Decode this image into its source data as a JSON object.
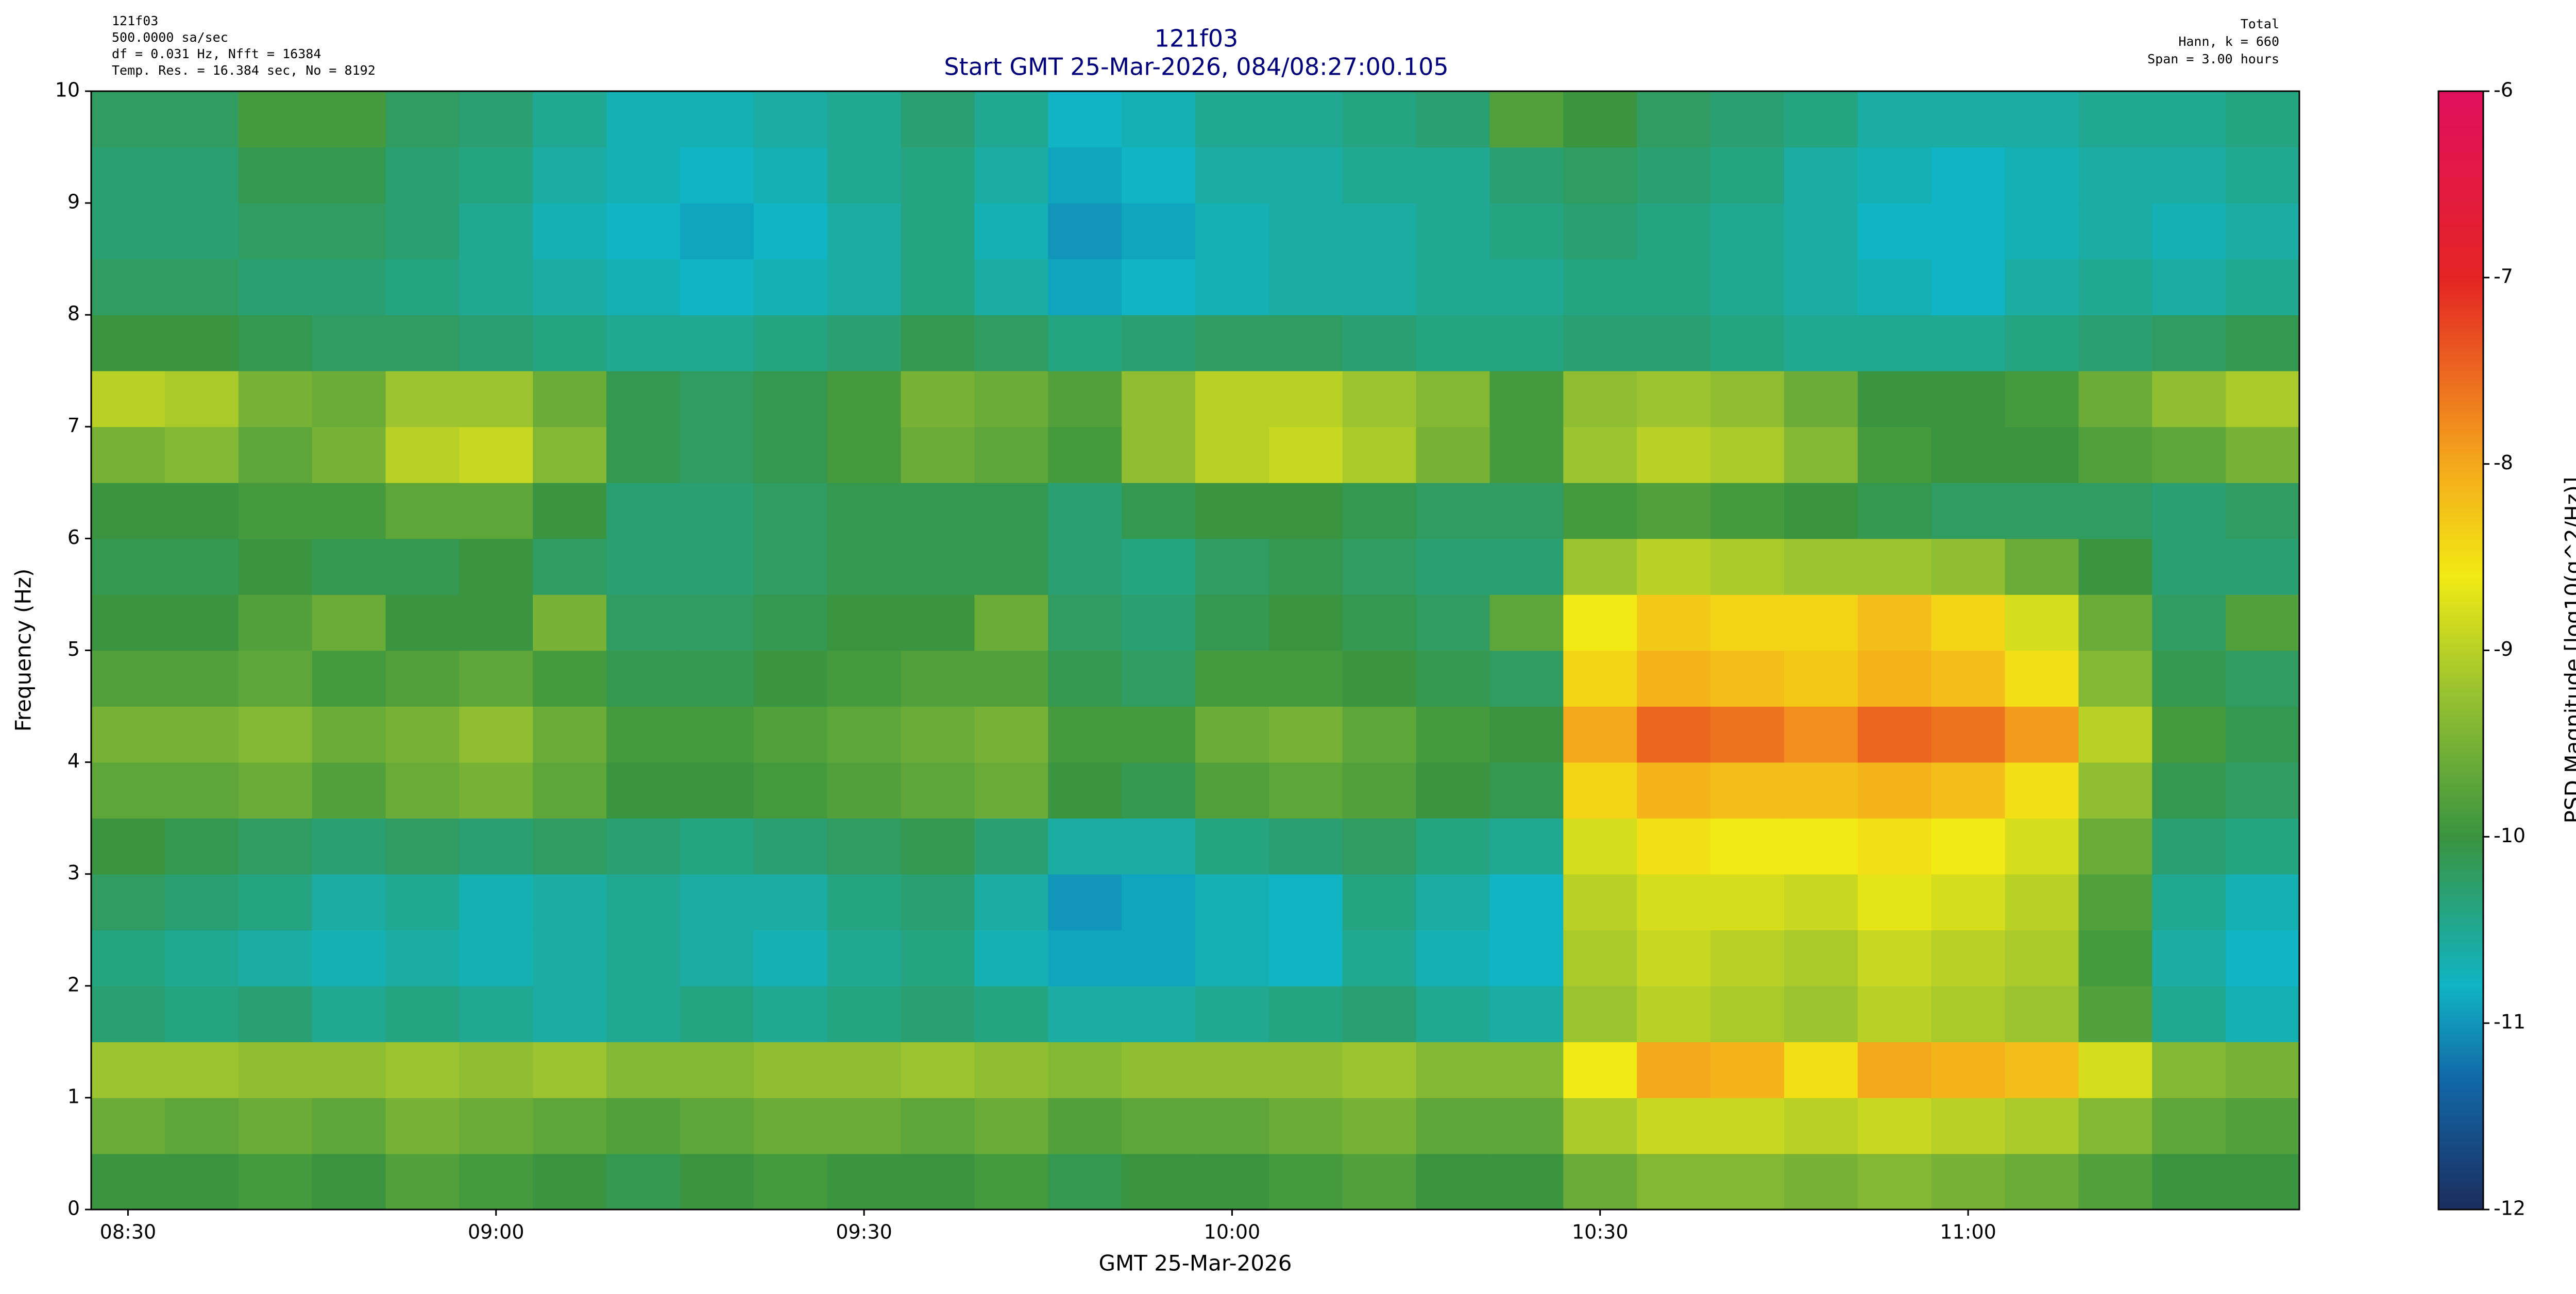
{
  "chart_data": {
    "type": "heatmap",
    "title": "121f03",
    "subtitle": "Start GMT 25-Mar-2026, 084/08:27:00.105",
    "info_left": [
      "121f03",
      "500.0000 sa/sec",
      "df = 0.031 Hz,  Nfft = 16384",
      "Temp. Res. = 16.384 sec, No = 8192"
    ],
    "info_right": [
      "Total",
      "Hann, k = 660",
      "Span = 3.00 hours"
    ],
    "x_label": "GMT 25-Mar-2026",
    "y_label": "Frequency (Hz)",
    "xlim": [
      "08:27",
      "11:27"
    ],
    "xticks": [
      "08:30",
      "09:00",
      "09:30",
      "10:00",
      "10:30",
      "11:00"
    ],
    "ylim": [
      0,
      10
    ],
    "yticks": [
      0,
      1,
      2,
      3,
      4,
      5,
      6,
      7,
      8,
      9,
      10
    ],
    "bins": [
      "08:27",
      "08:33",
      "08:39",
      "08:45",
      "08:51",
      "08:57",
      "09:03",
      "09:09",
      "09:15",
      "09:21",
      "09:27",
      "09:33",
      "09:39",
      "09:45",
      "09:51",
      "09:57",
      "10:03",
      "10:09",
      "10:15",
      "10:21",
      "10:27",
      "10:33",
      "10:39",
      "10:45",
      "10:51",
      "10:57",
      "11:03",
      "11:09",
      "11:15",
      "11:21",
      "11:27"
    ],
    "ybins": [
      0,
      0.5,
      1,
      1.5,
      2,
      2.5,
      3,
      3.5,
      4,
      4.5,
      5,
      5.5,
      6,
      6.5,
      7,
      7.5,
      8,
      8.5,
      9,
      9.5,
      10
    ],
    "values": [
      [
        -10.0,
        -10.0,
        -9.9,
        -10.0,
        -9.8,
        -9.9,
        -10.0,
        -10.1,
        -10.0,
        -9.9,
        -10.0,
        -10.0,
        -9.9,
        -10.1,
        -10.0,
        -10.0,
        -9.9,
        -9.8,
        -10.0,
        -10.0,
        -9.6,
        -9.4,
        -9.4,
        -9.5,
        -9.4,
        -9.5,
        -9.6,
        -9.8,
        -10.0,
        -10.0
      ],
      [
        -9.6,
        -9.7,
        -9.6,
        -9.7,
        -9.5,
        -9.6,
        -9.7,
        -9.8,
        -9.7,
        -9.6,
        -9.6,
        -9.7,
        -9.6,
        -9.8,
        -9.7,
        -9.7,
        -9.6,
        -9.5,
        -9.7,
        -9.7,
        -9.1,
        -8.9,
        -8.9,
        -9.0,
        -8.9,
        -9.0,
        -9.1,
        -9.4,
        -9.7,
        -9.8
      ],
      [
        -9.2,
        -9.2,
        -9.3,
        -9.3,
        -9.2,
        -9.3,
        -9.2,
        -9.4,
        -9.4,
        -9.3,
        -9.3,
        -9.2,
        -9.3,
        -9.4,
        -9.3,
        -9.3,
        -9.3,
        -9.2,
        -9.4,
        -9.4,
        -8.6,
        -8.0,
        -8.1,
        -8.5,
        -8.0,
        -8.1,
        -8.2,
        -8.8,
        -9.4,
        -9.5
      ],
      [
        -10.3,
        -10.4,
        -10.3,
        -10.5,
        -10.4,
        -10.5,
        -10.6,
        -10.5,
        -10.4,
        -10.5,
        -10.4,
        -10.3,
        -10.4,
        -10.6,
        -10.6,
        -10.5,
        -10.4,
        -10.3,
        -10.5,
        -10.6,
        -9.2,
        -9.0,
        -9.1,
        -9.2,
        -9.0,
        -9.1,
        -9.2,
        -9.8,
        -10.5,
        -10.7
      ],
      [
        -10.4,
        -10.5,
        -10.6,
        -10.7,
        -10.6,
        -10.7,
        -10.6,
        -10.5,
        -10.6,
        -10.7,
        -10.5,
        -10.4,
        -10.7,
        -10.9,
        -10.9,
        -10.7,
        -10.8,
        -10.5,
        -10.7,
        -10.8,
        -9.1,
        -8.9,
        -9.0,
        -9.1,
        -8.9,
        -9.0,
        -9.1,
        -9.9,
        -10.6,
        -10.8
      ],
      [
        -10.2,
        -10.3,
        -10.4,
        -10.6,
        -10.5,
        -10.7,
        -10.6,
        -10.5,
        -10.6,
        -10.6,
        -10.4,
        -10.3,
        -10.6,
        -11.0,
        -10.9,
        -10.7,
        -10.8,
        -10.4,
        -10.6,
        -10.8,
        -9.0,
        -8.8,
        -8.8,
        -8.9,
        -8.7,
        -8.8,
        -9.0,
        -9.8,
        -10.5,
        -10.7
      ],
      [
        -10.0,
        -10.1,
        -10.2,
        -10.3,
        -10.2,
        -10.3,
        -10.2,
        -10.3,
        -10.4,
        -10.3,
        -10.2,
        -10.1,
        -10.3,
        -10.6,
        -10.6,
        -10.4,
        -10.3,
        -10.2,
        -10.4,
        -10.5,
        -8.8,
        -8.5,
        -8.6,
        -8.6,
        -8.5,
        -8.6,
        -8.8,
        -9.6,
        -10.3,
        -10.4
      ],
      [
        -9.7,
        -9.7,
        -9.6,
        -9.8,
        -9.6,
        -9.5,
        -9.7,
        -10.0,
        -10.0,
        -9.9,
        -9.8,
        -9.7,
        -9.6,
        -10.0,
        -10.1,
        -9.8,
        -9.7,
        -9.8,
        -10.0,
        -10.1,
        -8.4,
        -8.1,
        -8.2,
        -8.2,
        -8.1,
        -8.2,
        -8.5,
        -9.3,
        -10.1,
        -10.2
      ],
      [
        -9.5,
        -9.5,
        -9.4,
        -9.6,
        -9.5,
        -9.3,
        -9.6,
        -9.9,
        -9.9,
        -9.8,
        -9.7,
        -9.6,
        -9.5,
        -9.9,
        -9.9,
        -9.6,
        -9.5,
        -9.7,
        -9.9,
        -10.0,
        -8.0,
        -7.5,
        -7.6,
        -7.8,
        -7.5,
        -7.6,
        -7.9,
        -9.0,
        -9.9,
        -10.1
      ],
      [
        -9.8,
        -9.8,
        -9.7,
        -9.9,
        -9.8,
        -9.7,
        -9.9,
        -10.1,
        -10.1,
        -10.0,
        -9.9,
        -9.8,
        -9.8,
        -10.1,
        -10.2,
        -9.9,
        -9.9,
        -10.0,
        -10.1,
        -10.2,
        -8.4,
        -8.1,
        -8.2,
        -8.3,
        -8.1,
        -8.2,
        -8.5,
        -9.4,
        -10.1,
        -10.2
      ],
      [
        -10.0,
        -10.0,
        -9.8,
        -9.6,
        -10.0,
        -10.0,
        -9.5,
        -10.2,
        -10.2,
        -10.1,
        -10.0,
        -10.0,
        -9.6,
        -10.2,
        -10.3,
        -10.1,
        -10.0,
        -10.1,
        -10.2,
        -9.7,
        -8.6,
        -8.3,
        -8.4,
        -8.4,
        -8.2,
        -8.4,
        -8.8,
        -9.6,
        -10.2,
        -9.8
      ],
      [
        -10.1,
        -10.1,
        -10.0,
        -10.1,
        -10.1,
        -10.0,
        -10.2,
        -10.3,
        -10.3,
        -10.2,
        -10.1,
        -10.1,
        -10.1,
        -10.3,
        -10.4,
        -10.2,
        -10.1,
        -10.2,
        -10.3,
        -10.3,
        -9.2,
        -9.0,
        -9.1,
        -9.2,
        -9.2,
        -9.3,
        -9.6,
        -10.0,
        -10.3,
        -10.3
      ],
      [
        -10.0,
        -10.0,
        -9.9,
        -9.9,
        -9.7,
        -9.7,
        -10.0,
        -10.3,
        -10.3,
        -10.2,
        -10.1,
        -10.1,
        -10.1,
        -10.3,
        -10.1,
        -10.0,
        -10.0,
        -10.1,
        -10.2,
        -10.2,
        -9.9,
        -9.8,
        -9.9,
        -10.0,
        -10.1,
        -10.2,
        -10.2,
        -10.2,
        -10.3,
        -10.2
      ],
      [
        -9.5,
        -9.4,
        -9.7,
        -9.5,
        -9.0,
        -8.9,
        -9.4,
        -10.1,
        -10.2,
        -10.1,
        -9.9,
        -9.6,
        -9.7,
        -9.9,
        -9.3,
        -9.0,
        -8.9,
        -9.1,
        -9.5,
        -9.9,
        -9.2,
        -9.0,
        -9.1,
        -9.4,
        -9.9,
        -10.0,
        -10.0,
        -9.8,
        -9.7,
        -9.5
      ],
      [
        -9.0,
        -9.1,
        -9.5,
        -9.6,
        -9.2,
        -9.2,
        -9.6,
        -10.1,
        -10.2,
        -10.1,
        -9.9,
        -9.5,
        -9.6,
        -9.8,
        -9.3,
        -9.0,
        -9.0,
        -9.2,
        -9.4,
        -9.9,
        -9.3,
        -9.2,
        -9.3,
        -9.6,
        -10.0,
        -10.0,
        -9.9,
        -9.6,
        -9.3,
        -9.1
      ],
      [
        -10.0,
        -10.0,
        -10.1,
        -10.2,
        -10.2,
        -10.3,
        -10.4,
        -10.5,
        -10.5,
        -10.4,
        -10.3,
        -10.1,
        -10.2,
        -10.4,
        -10.3,
        -10.2,
        -10.2,
        -10.3,
        -10.4,
        -10.4,
        -10.3,
        -10.3,
        -10.4,
        -10.5,
        -10.5,
        -10.5,
        -10.4,
        -10.3,
        -10.2,
        -10.1
      ],
      [
        -10.2,
        -10.2,
        -10.3,
        -10.3,
        -10.4,
        -10.5,
        -10.6,
        -10.7,
        -10.8,
        -10.7,
        -10.6,
        -10.4,
        -10.6,
        -10.9,
        -10.8,
        -10.7,
        -10.6,
        -10.6,
        -10.5,
        -10.5,
        -10.4,
        -10.4,
        -10.5,
        -10.6,
        -10.7,
        -10.8,
        -10.6,
        -10.5,
        -10.6,
        -10.5
      ],
      [
        -10.3,
        -10.3,
        -10.2,
        -10.2,
        -10.3,
        -10.5,
        -10.7,
        -10.8,
        -10.9,
        -10.8,
        -10.6,
        -10.4,
        -10.7,
        -11.0,
        -10.9,
        -10.7,
        -10.6,
        -10.6,
        -10.5,
        -10.4,
        -10.3,
        -10.4,
        -10.5,
        -10.6,
        -10.8,
        -10.8,
        -10.7,
        -10.6,
        -10.7,
        -10.6
      ],
      [
        -10.3,
        -10.3,
        -10.1,
        -10.1,
        -10.3,
        -10.4,
        -10.6,
        -10.7,
        -10.8,
        -10.7,
        -10.5,
        -10.4,
        -10.6,
        -10.9,
        -10.8,
        -10.6,
        -10.6,
        -10.5,
        -10.5,
        -10.3,
        -10.2,
        -10.3,
        -10.4,
        -10.6,
        -10.7,
        -10.8,
        -10.7,
        -10.6,
        -10.6,
        -10.5
      ],
      [
        -10.2,
        -10.2,
        -9.9,
        -9.9,
        -10.2,
        -10.3,
        -10.5,
        -10.7,
        -10.7,
        -10.6,
        -10.5,
        -10.3,
        -10.5,
        -10.8,
        -10.7,
        -10.5,
        -10.5,
        -10.4,
        -10.3,
        -9.8,
        -10.0,
        -10.2,
        -10.3,
        -10.4,
        -10.6,
        -10.6,
        -10.6,
        -10.5,
        -10.5,
        -10.4
      ]
    ],
    "colorbar": {
      "label": "PSD Magnitude [log10(g^2/Hz)]",
      "zlim": [
        -12,
        -6
      ],
      "zticks": [
        -12,
        -11,
        -10,
        -9,
        -8,
        -7,
        -6
      ],
      "colormap": [
        {
          "value": -12,
          "color": "#1b2d5e"
        },
        {
          "value": -11.3,
          "color": "#1268a8"
        },
        {
          "value": -10.8,
          "color": "#10b4c4"
        },
        {
          "value": -10.0,
          "color": "#3a9440"
        },
        {
          "value": -9.2,
          "color": "#9cc430"
        },
        {
          "value": -8.6,
          "color": "#f2ea14"
        },
        {
          "value": -8.0,
          "color": "#f4a81c"
        },
        {
          "value": -7.0,
          "color": "#e42424"
        },
        {
          "value": -6,
          "color": "#e0105e"
        }
      ]
    }
  }
}
